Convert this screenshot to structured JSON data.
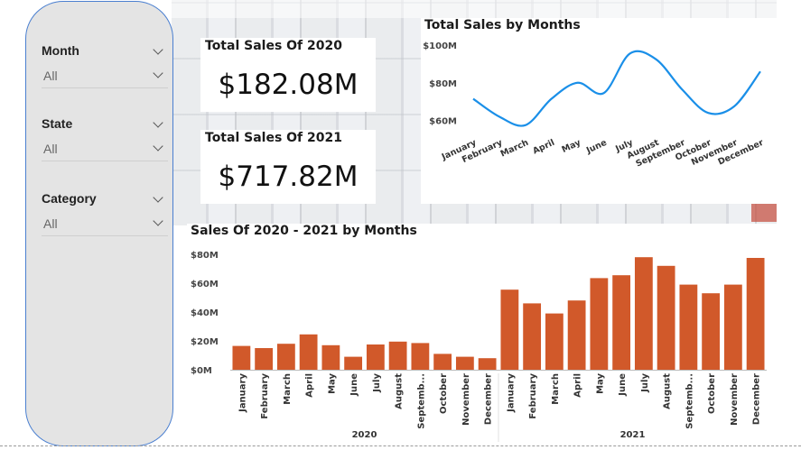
{
  "slicers": [
    {
      "title": "Month",
      "value": "All"
    },
    {
      "title": "State",
      "value": "All"
    },
    {
      "title": "Category",
      "value": "All"
    }
  ],
  "kpis": [
    {
      "title": "Total Sales Of 2020",
      "value": "$182.08M"
    },
    {
      "title": "Total Sales Of 2021",
      "value": "$717.82M"
    }
  ],
  "line_chart": {
    "title": "Total Sales by Months"
  },
  "bar_chart": {
    "title": "Sales Of 2020 - 2021 by Months"
  },
  "colors": {
    "line": "#1a8fe8",
    "bar": "#d1592a",
    "panel_border": "#4a7fd0"
  },
  "chart_data": [
    {
      "type": "line",
      "title": "Total Sales by Months",
      "categories": [
        "January",
        "February",
        "March",
        "April",
        "May",
        "June",
        "July",
        "August",
        "September",
        "October",
        "November",
        "December"
      ],
      "series": [
        {
          "values": [
            71.5,
            62,
            57.5,
            71.5,
            80,
            74.5,
            95.5,
            92.5,
            76.5,
            64,
            67.5,
            86
          ]
        }
      ],
      "ylim": [
        55,
        100
      ],
      "yticks": [
        60,
        80,
        100
      ],
      "ytick_labels": [
        "$60M",
        "$80M",
        "$100M"
      ],
      "grid": false
    },
    {
      "type": "bar",
      "title": "Sales Of 2020 - 2021 by Months",
      "categories": [
        "January",
        "February",
        "March",
        "April",
        "May",
        "June",
        "July",
        "August",
        "Septemb...",
        "October",
        "November",
        "December",
        "January",
        "February",
        "March",
        "April",
        "May",
        "June",
        "July",
        "August",
        "Septemb...",
        "October",
        "November",
        "December"
      ],
      "groups": [
        {
          "label": "2020",
          "from": 0,
          "to": 11
        },
        {
          "label": "2021",
          "from": 12,
          "to": 23
        }
      ],
      "values": [
        16.5,
        15,
        18,
        24.5,
        17,
        9,
        17.5,
        19.5,
        18.5,
        11,
        9,
        8,
        55.5,
        46,
        39,
        48,
        63.5,
        65.5,
        78,
        72,
        59,
        53,
        59,
        77.5
      ],
      "ylim": [
        0,
        80
      ],
      "yticks": [
        0,
        20,
        40,
        60,
        80
      ],
      "ytick_labels": [
        "$0M",
        "$20M",
        "$40M",
        "$60M",
        "$80M"
      ],
      "grid": false
    }
  ]
}
